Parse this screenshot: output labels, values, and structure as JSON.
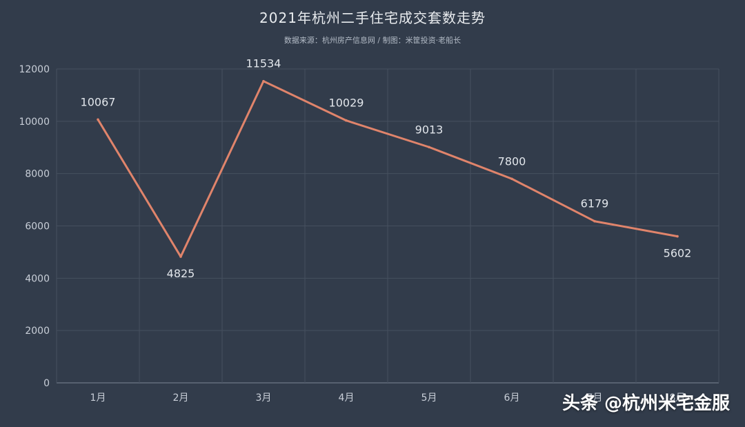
{
  "chart_data": {
    "type": "line",
    "title": "2021年杭州二手住宅成交套数走势",
    "subtitle": "数据来源：杭州房产信息网 / 制图：米筐投资·老船长",
    "categories": [
      "1月",
      "2月",
      "3月",
      "4月",
      "5月",
      "6月",
      "7月",
      "8月"
    ],
    "series": [
      {
        "values": [
          10067,
          4825,
          11534,
          10029,
          9013,
          7800,
          6179,
          5602
        ]
      }
    ],
    "ylim": [
      0,
      12000
    ],
    "yticks": [
      0,
      2000,
      4000,
      6000,
      8000,
      10000,
      12000
    ],
    "grid": true,
    "line_color": "#e0846b",
    "background": "#323c4b"
  },
  "watermark": "头条 @杭州米宅金服"
}
